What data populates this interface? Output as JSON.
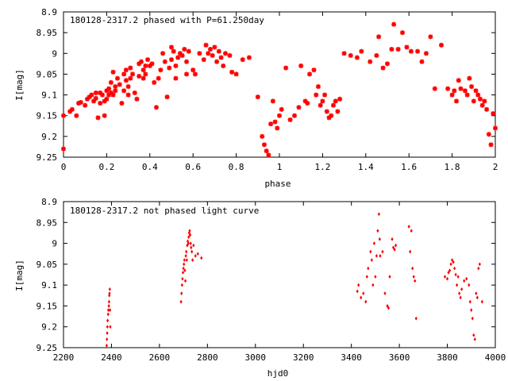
{
  "chart_data": [
    {
      "type": "scatter",
      "title": "180128-2317.2 phased with P=61.250day",
      "xlabel": "phase",
      "ylabel": "I[mag]",
      "xlim": [
        0,
        2
      ],
      "ylim": [
        9.25,
        8.9
      ],
      "y_inverted": true,
      "grid": false,
      "legend": "none",
      "marker_color": "#ff0000",
      "x_ticks": [
        "0",
        "0.2",
        "0.4",
        "0.6",
        "0.8",
        "1",
        "1.2",
        "1.4",
        "1.6",
        "1.8",
        "2"
      ],
      "y_ticks": [
        "8.9",
        "8.95",
        "9",
        "9.05",
        "9.1",
        "9.15",
        "9.2",
        "9.25"
      ],
      "x_tick_values": [
        0,
        0.2,
        0.4,
        0.6,
        0.8,
        1.0,
        1.2,
        1.4,
        1.6,
        1.8,
        2.0
      ],
      "y_tick_values": [
        8.9,
        8.95,
        9.0,
        9.05,
        9.1,
        9.15,
        9.2,
        9.25
      ],
      "points": [
        [
          0.0,
          9.23
        ],
        [
          0.0,
          9.15
        ],
        [
          0.03,
          9.14
        ],
        [
          0.04,
          9.135
        ],
        [
          0.06,
          9.15
        ],
        [
          0.07,
          9.12
        ],
        [
          0.08,
          9.118
        ],
        [
          0.1,
          9.125
        ],
        [
          0.11,
          9.11
        ],
        [
          0.12,
          9.105
        ],
        [
          0.13,
          9.1
        ],
        [
          0.14,
          9.115
        ],
        [
          0.15,
          9.095
        ],
        [
          0.15,
          9.108
        ],
        [
          0.16,
          9.155
        ],
        [
          0.17,
          9.12
        ],
        [
          0.17,
          9.095
        ],
        [
          0.18,
          9.1
        ],
        [
          0.19,
          9.115
        ],
        [
          0.19,
          9.15
        ],
        [
          0.2,
          9.09
        ],
        [
          0.2,
          9.11
        ],
        [
          0.21,
          9.085
        ],
        [
          0.21,
          9.1
        ],
        [
          0.22,
          9.07
        ],
        [
          0.22,
          9.095
        ],
        [
          0.23,
          9.045
        ],
        [
          0.23,
          9.1
        ],
        [
          0.24,
          9.08
        ],
        [
          0.24,
          9.09
        ],
        [
          0.25,
          9.06
        ],
        [
          0.26,
          9.075
        ],
        [
          0.27,
          9.12
        ],
        [
          0.28,
          9.05
        ],
        [
          0.28,
          9.09
        ],
        [
          0.29,
          9.065
        ],
        [
          0.29,
          9.04
        ],
        [
          0.3,
          9.08
        ],
        [
          0.3,
          9.1
        ],
        [
          0.31,
          9.06
        ],
        [
          0.31,
          9.035
        ],
        [
          0.32,
          9.05
        ],
        [
          0.33,
          9.095
        ],
        [
          0.34,
          9.11
        ],
        [
          0.35,
          9.055
        ],
        [
          0.35,
          9.025
        ],
        [
          0.36,
          9.02
        ],
        [
          0.37,
          9.04
        ],
        [
          0.37,
          9.06
        ],
        [
          0.38,
          9.05
        ],
        [
          0.38,
          9.03
        ],
        [
          0.39,
          9.015
        ],
        [
          0.4,
          9.03
        ],
        [
          0.41,
          9.025
        ],
        [
          0.42,
          9.07
        ],
        [
          0.43,
          9.13
        ],
        [
          0.44,
          9.06
        ],
        [
          0.45,
          9.04
        ],
        [
          0.46,
          9.0
        ],
        [
          0.47,
          9.02
        ],
        [
          0.48,
          9.105
        ],
        [
          0.49,
          9.035
        ],
        [
          0.5,
          8.985
        ],
        [
          0.5,
          9.015
        ],
        [
          0.51,
          8.995
        ],
        [
          0.52,
          9.03
        ],
        [
          0.52,
          9.06
        ],
        [
          0.53,
          9.01
        ],
        [
          0.54,
          9.0
        ],
        [
          0.55,
          9.005
        ],
        [
          0.56,
          8.99
        ],
        [
          0.57,
          9.02
        ],
        [
          0.57,
          9.05
        ],
        [
          0.58,
          8.995
        ],
        [
          0.6,
          9.04
        ],
        [
          0.61,
          9.05
        ],
        [
          0.63,
          9.0
        ],
        [
          0.65,
          9.015
        ],
        [
          0.66,
          8.98
        ],
        [
          0.67,
          9.0
        ],
        [
          0.68,
          8.99
        ],
        [
          0.69,
          9.005
        ],
        [
          0.7,
          8.985
        ],
        [
          0.71,
          9.02
        ],
        [
          0.72,
          8.995
        ],
        [
          0.73,
          9.01
        ],
        [
          0.74,
          9.03
        ],
        [
          0.75,
          9.0
        ],
        [
          0.77,
          9.005
        ],
        [
          0.78,
          9.045
        ],
        [
          0.8,
          9.05
        ],
        [
          0.83,
          9.015
        ],
        [
          0.86,
          9.01
        ],
        [
          0.9,
          9.105
        ],
        [
          0.92,
          9.2
        ],
        [
          0.93,
          9.22
        ],
        [
          0.94,
          9.235
        ],
        [
          0.95,
          9.245
        ],
        [
          0.96,
          9.17
        ],
        [
          0.97,
          9.115
        ],
        [
          0.98,
          9.165
        ],
        [
          0.99,
          9.18
        ],
        [
          1.0,
          9.15
        ],
        [
          1.01,
          9.135
        ],
        [
          1.03,
          9.035
        ],
        [
          1.05,
          9.16
        ],
        [
          1.07,
          9.15
        ],
        [
          1.09,
          9.13
        ],
        [
          1.1,
          9.03
        ],
        [
          1.12,
          9.115
        ],
        [
          1.13,
          9.12
        ],
        [
          1.14,
          9.05
        ],
        [
          1.16,
          9.04
        ],
        [
          1.17,
          9.1
        ],
        [
          1.18,
          9.08
        ],
        [
          1.19,
          9.125
        ],
        [
          1.2,
          9.115
        ],
        [
          1.21,
          9.1
        ],
        [
          1.22,
          9.14
        ],
        [
          1.23,
          9.155
        ],
        [
          1.24,
          9.15
        ],
        [
          1.25,
          9.125
        ],
        [
          1.26,
          9.115
        ],
        [
          1.27,
          9.14
        ],
        [
          1.28,
          9.11
        ],
        [
          1.3,
          9.0
        ],
        [
          1.33,
          9.005
        ],
        [
          1.36,
          9.01
        ],
        [
          1.38,
          8.995
        ],
        [
          1.42,
          9.02
        ],
        [
          1.45,
          9.005
        ],
        [
          1.46,
          8.96
        ],
        [
          1.48,
          9.035
        ],
        [
          1.5,
          9.025
        ],
        [
          1.52,
          8.99
        ],
        [
          1.53,
          8.93
        ],
        [
          1.55,
          8.99
        ],
        [
          1.57,
          8.95
        ],
        [
          1.59,
          8.985
        ],
        [
          1.61,
          8.995
        ],
        [
          1.64,
          8.995
        ],
        [
          1.66,
          9.02
        ],
        [
          1.68,
          9.0
        ],
        [
          1.7,
          8.96
        ],
        [
          1.72,
          9.085
        ],
        [
          1.75,
          8.98
        ],
        [
          1.78,
          9.085
        ],
        [
          1.8,
          9.1
        ],
        [
          1.81,
          9.09
        ],
        [
          1.82,
          9.115
        ],
        [
          1.83,
          9.065
        ],
        [
          1.84,
          9.085
        ],
        [
          1.86,
          9.09
        ],
        [
          1.87,
          9.1
        ],
        [
          1.88,
          9.06
        ],
        [
          1.89,
          9.08
        ],
        [
          1.9,
          9.115
        ],
        [
          1.91,
          9.09
        ],
        [
          1.92,
          9.1
        ],
        [
          1.93,
          9.11
        ],
        [
          1.94,
          9.125
        ],
        [
          1.95,
          9.115
        ],
        [
          1.96,
          9.135
        ],
        [
          1.97,
          9.195
        ],
        [
          1.98,
          9.22
        ],
        [
          1.99,
          9.145
        ],
        [
          2.0,
          9.18
        ]
      ]
    },
    {
      "type": "scatter",
      "title": "180128-2317.2 not phased light curve",
      "xlabel": "hjd0",
      "ylabel": "I[mag]",
      "xlim": [
        2200,
        4000
      ],
      "ylim": [
        9.25,
        8.9
      ],
      "y_inverted": true,
      "grid": false,
      "legend": "none",
      "marker_color": "#ff0000",
      "x_ticks": [
        "2200",
        "2400",
        "2600",
        "2800",
        "3000",
        "3200",
        "3400",
        "3600",
        "3800",
        "4000"
      ],
      "y_ticks": [
        "8.9",
        "8.95",
        "9",
        "9.05",
        "9.1",
        "9.15",
        "9.2",
        "9.25"
      ],
      "x_tick_values": [
        2200,
        2400,
        2600,
        2800,
        3000,
        3200,
        3400,
        3600,
        3800,
        4000
      ],
      "y_tick_values": [
        8.9,
        8.95,
        9.0,
        9.05,
        9.1,
        9.15,
        9.2,
        9.25
      ],
      "points": [
        [
          2380,
          9.245
        ],
        [
          2381,
          9.23
        ],
        [
          2382,
          9.215
        ],
        [
          2383,
          9.2
        ],
        [
          2384,
          9.185
        ],
        [
          2386,
          9.17
        ],
        [
          2387,
          9.16
        ],
        [
          2389,
          9.15
        ],
        [
          2390,
          9.14
        ],
        [
          2391,
          9.125
        ],
        [
          2392,
          9.12
        ],
        [
          2393,
          9.11
        ],
        [
          2394,
          9.16
        ],
        [
          2395,
          9.2
        ],
        [
          2690,
          9.14
        ],
        [
          2692,
          9.12
        ],
        [
          2694,
          9.1
        ],
        [
          2696,
          9.085
        ],
        [
          2698,
          9.07
        ],
        [
          2700,
          9.06
        ],
        [
          2702,
          9.05
        ],
        [
          2704,
          9.04
        ],
        [
          2706,
          9.065
        ],
        [
          2708,
          9.09
        ],
        [
          2710,
          9.03
        ],
        [
          2712,
          9.02
        ],
        [
          2714,
          9.04
        ],
        [
          2716,
          9.005
        ],
        [
          2718,
          8.995
        ],
        [
          2720,
          9.0
        ],
        [
          2722,
          8.985
        ],
        [
          2724,
          8.975
        ],
        [
          2726,
          8.97
        ],
        [
          2728,
          8.98
        ],
        [
          2730,
          9.0
        ],
        [
          2732,
          9.01
        ],
        [
          2735,
          9.02
        ],
        [
          2738,
          9.04
        ],
        [
          2742,
          9.005
        ],
        [
          2750,
          9.03
        ],
        [
          2760,
          9.025
        ],
        [
          2775,
          9.035
        ],
        [
          3425,
          9.115
        ],
        [
          3430,
          9.1
        ],
        [
          3440,
          9.13
        ],
        [
          3450,
          9.12
        ],
        [
          3460,
          9.14
        ],
        [
          3465,
          9.08
        ],
        [
          3470,
          9.06
        ],
        [
          3480,
          9.02
        ],
        [
          3485,
          9.04
        ],
        [
          3490,
          9.1
        ],
        [
          3495,
          9.0
        ],
        [
          3500,
          9.08
        ],
        [
          3505,
          9.03
        ],
        [
          3510,
          8.97
        ],
        [
          3515,
          8.93
        ],
        [
          3518,
          8.99
        ],
        [
          3520,
          9.03
        ],
        [
          3530,
          9.02
        ],
        [
          3540,
          9.12
        ],
        [
          3550,
          9.15
        ],
        [
          3555,
          9.155
        ],
        [
          3560,
          9.08
        ],
        [
          3570,
          8.99
        ],
        [
          3575,
          9.01
        ],
        [
          3580,
          9.015
        ],
        [
          3585,
          9.005
        ],
        [
          3640,
          8.96
        ],
        [
          3645,
          9.02
        ],
        [
          3650,
          8.97
        ],
        [
          3655,
          9.06
        ],
        [
          3660,
          9.08
        ],
        [
          3665,
          9.09
        ],
        [
          3670,
          9.18
        ],
        [
          3790,
          9.08
        ],
        [
          3800,
          9.085
        ],
        [
          3805,
          9.07
        ],
        [
          3810,
          9.065
        ],
        [
          3815,
          9.05
        ],
        [
          3820,
          9.04
        ],
        [
          3825,
          9.045
        ],
        [
          3830,
          9.06
        ],
        [
          3835,
          9.075
        ],
        [
          3840,
          9.1
        ],
        [
          3845,
          9.08
        ],
        [
          3850,
          9.12
        ],
        [
          3855,
          9.13
        ],
        [
          3860,
          9.11
        ],
        [
          3870,
          9.09
        ],
        [
          3880,
          9.085
        ],
        [
          3890,
          9.1
        ],
        [
          3895,
          9.14
        ],
        [
          3900,
          9.16
        ],
        [
          3905,
          9.18
        ],
        [
          3910,
          9.22
        ],
        [
          3915,
          9.23
        ],
        [
          3920,
          9.12
        ],
        [
          3925,
          9.13
        ],
        [
          3930,
          9.06
        ],
        [
          3935,
          9.05
        ],
        [
          3945,
          9.14
        ]
      ]
    }
  ]
}
